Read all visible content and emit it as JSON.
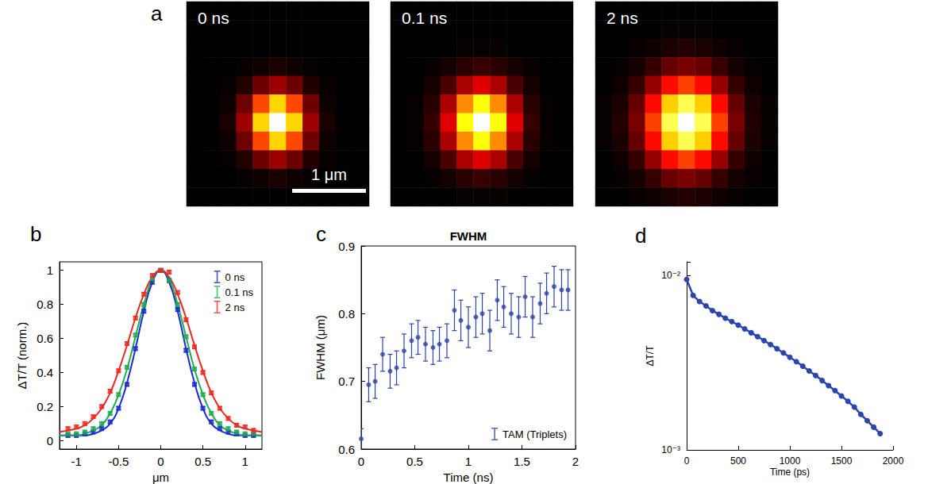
{
  "chart_data": [
    {
      "panel": "a",
      "type": "heatmap",
      "tick_labels": false,
      "zlim": [
        0,
        1
      ],
      "pixel_size": 0.225,
      "scale_bar": {
        "label": "1 μm",
        "length": 1
      },
      "images": [
        {
          "title": "0 ns",
          "cells": [
            [
              0,
              0,
              0,
              0,
              0,
              0,
              0,
              0,
              0,
              0,
              0
            ],
            [
              0,
              0,
              0,
              0,
              0,
              0,
              0,
              0,
              0,
              0,
              0
            ],
            [
              0,
              0,
              0,
              0,
              0,
              0,
              0,
              0,
              0,
              0,
              0
            ],
            [
              0,
              0,
              0,
              0.01,
              0.02,
              0.04,
              0.02,
              0.01,
              0,
              0,
              0
            ],
            [
              0,
              0,
              0.01,
              0.05,
              0.16,
              0.23,
              0.16,
              0.05,
              0.01,
              0,
              0
            ],
            [
              0,
              0,
              0.02,
              0.16,
              0.48,
              0.69,
              0.48,
              0.16,
              0.02,
              0,
              0
            ],
            [
              0,
              0,
              0.04,
              0.23,
              0.69,
              1,
              0.69,
              0.23,
              0.04,
              0,
              0
            ],
            [
              0,
              0,
              0.02,
              0.16,
              0.48,
              0.69,
              0.48,
              0.16,
              0.02,
              0,
              0
            ],
            [
              0,
              0,
              0.01,
              0.05,
              0.16,
              0.23,
              0.16,
              0.05,
              0.01,
              0,
              0
            ],
            [
              0,
              0,
              0,
              0.01,
              0.02,
              0.04,
              0.02,
              0.01,
              0,
              0,
              0
            ],
            [
              0,
              0,
              0,
              0,
              0,
              0,
              0,
              0,
              0,
              0,
              0
            ]
          ]
        },
        {
          "title": "0.1 ns",
          "cells": [
            [
              0,
              0,
              0,
              0,
              0,
              0,
              0,
              0,
              0,
              0,
              0
            ],
            [
              0,
              0,
              0,
              0,
              0,
              0,
              0,
              0,
              0,
              0,
              0
            ],
            [
              0,
              0,
              0,
              0,
              0.01,
              0.01,
              0.01,
              0,
              0,
              0,
              0
            ],
            [
              0,
              0,
              0.01,
              0.03,
              0.06,
              0.08,
              0.06,
              0.03,
              0.01,
              0,
              0
            ],
            [
              0,
              0,
              0.03,
              0.11,
              0.25,
              0.33,
              0.25,
              0.11,
              0.03,
              0,
              0
            ],
            [
              0,
              0.01,
              0.06,
              0.25,
              0.58,
              0.76,
              0.58,
              0.25,
              0.06,
              0.01,
              0
            ],
            [
              0,
              0.01,
              0.08,
              0.33,
              0.76,
              1,
              0.76,
              0.33,
              0.08,
              0.01,
              0
            ],
            [
              0,
              0.01,
              0.06,
              0.25,
              0.58,
              0.76,
              0.58,
              0.25,
              0.06,
              0.01,
              0
            ],
            [
              0,
              0,
              0.03,
              0.11,
              0.25,
              0.33,
              0.25,
              0.11,
              0.03,
              0,
              0
            ],
            [
              0,
              0,
              0.01,
              0.03,
              0.06,
              0.08,
              0.06,
              0.03,
              0.01,
              0,
              0
            ],
            [
              0,
              0,
              0,
              0,
              0.01,
              0.01,
              0.01,
              0,
              0,
              0,
              0
            ]
          ]
        },
        {
          "title": "2 ns",
          "cells": [
            [
              0,
              0,
              0,
              0,
              0,
              0,
              0,
              0,
              0,
              0,
              0
            ],
            [
              0,
              0,
              0,
              0,
              0.01,
              0.01,
              0.01,
              0,
              0,
              0,
              0
            ],
            [
              0,
              0,
              0.01,
              0.02,
              0.04,
              0.05,
              0.04,
              0.02,
              0.01,
              0,
              0
            ],
            [
              0,
              0.01,
              0.03,
              0.08,
              0.15,
              0.18,
              0.15,
              0.08,
              0.03,
              0.01,
              0
            ],
            [
              0,
              0.02,
              0.08,
              0.22,
              0.39,
              0.47,
              0.39,
              0.22,
              0.08,
              0.02,
              0
            ],
            [
              0.01,
              0.04,
              0.15,
              0.39,
              0.68,
              0.83,
              0.68,
              0.39,
              0.15,
              0.04,
              0.01
            ],
            [
              0.01,
              0.05,
              0.18,
              0.47,
              0.83,
              1,
              0.83,
              0.47,
              0.18,
              0.05,
              0.01
            ],
            [
              0.01,
              0.04,
              0.15,
              0.39,
              0.68,
              0.83,
              0.68,
              0.39,
              0.15,
              0.04,
              0.01
            ],
            [
              0,
              0.02,
              0.08,
              0.22,
              0.39,
              0.47,
              0.39,
              0.22,
              0.08,
              0.02,
              0
            ],
            [
              0,
              0.01,
              0.03,
              0.08,
              0.15,
              0.18,
              0.15,
              0.08,
              0.03,
              0.01,
              0
            ],
            [
              0,
              0,
              0.01,
              0.02,
              0.04,
              0.05,
              0.04,
              0.02,
              0.01,
              0,
              0
            ]
          ]
        }
      ]
    },
    {
      "panel": "b",
      "type": "scatter",
      "xlabel": "μm",
      "ylabel": "ΔT/T (norm.)",
      "xlim": [
        -1.2,
        1.2
      ],
      "xticks": [
        -1,
        -0.5,
        0,
        0.5,
        1
      ],
      "ylim": [
        -0.05,
        1.05
      ],
      "yticks": [
        0,
        0.2,
        0.4,
        0.6,
        0.8,
        1
      ],
      "legend": "upper right",
      "marker": "square",
      "series": [
        {
          "name": "0 ns",
          "color": "#1b2bd6",
          "x": [
            -1.1,
            -1,
            -0.9,
            -0.8,
            -0.7,
            -0.6,
            -0.5,
            -0.4,
            -0.3,
            -0.2,
            -0.1,
            0,
            0.1,
            0.2,
            0.3,
            0.4,
            0.5,
            0.6,
            0.7,
            0.8,
            0.9,
            1,
            1.1
          ],
          "values": [
            0.03,
            0.03,
            0.04,
            0.05,
            0.07,
            0.11,
            0.19,
            0.33,
            0.54,
            0.76,
            0.93,
            1,
            0.94,
            0.77,
            0.53,
            0.33,
            0.19,
            0.11,
            0.07,
            0.05,
            0.04,
            0.03,
            0.03
          ],
          "errors": [
            0.01,
            0.01,
            0.01,
            0.01,
            0.01,
            0.01,
            0.01,
            0.01,
            0.01,
            0.01,
            0.01,
            0.01,
            0.01,
            0.01,
            0.01,
            0.01,
            0.01,
            0.01,
            0.01,
            0.01,
            0.01,
            0.01,
            0.01
          ],
          "fit": {
            "x": [
              -1.2,
              -1.1,
              -1,
              -0.9,
              -0.8,
              -0.7,
              -0.6,
              -0.5,
              -0.4,
              -0.3,
              -0.2,
              -0.1,
              0,
              0.1,
              0.2,
              0.3,
              0.4,
              0.5,
              0.6,
              0.7,
              0.8,
              0.9,
              1,
              1.1,
              1.2
            ],
            "values": [
              0.03,
              0.03,
              0.03,
              0.03,
              0.04,
              0.06,
              0.1,
              0.19,
              0.34,
              0.54,
              0.76,
              0.93,
              1,
              0.93,
              0.76,
              0.54,
              0.34,
              0.19,
              0.1,
              0.06,
              0.04,
              0.03,
              0.03,
              0.03,
              0.03
            ]
          }
        },
        {
          "name": "0.1 ns",
          "color": "#1fae4b",
          "x": [
            -1.1,
            -1,
            -0.9,
            -0.8,
            -0.7,
            -0.6,
            -0.5,
            -0.4,
            -0.3,
            -0.2,
            -0.1,
            0,
            0.1,
            0.2,
            0.3,
            0.4,
            0.5,
            0.6,
            0.7,
            0.8,
            0.9,
            1,
            1.1
          ],
          "values": [
            0.04,
            0.04,
            0.05,
            0.07,
            0.1,
            0.16,
            0.27,
            0.43,
            0.62,
            0.8,
            0.95,
            1,
            0.94,
            0.8,
            0.61,
            0.42,
            0.27,
            0.16,
            0.1,
            0.07,
            0.05,
            0.04,
            0.04
          ],
          "errors": [
            0.01,
            0.01,
            0.01,
            0.01,
            0.01,
            0.01,
            0.01,
            0.01,
            0.01,
            0.01,
            0.01,
            0.01,
            0.01,
            0.01,
            0.01,
            0.01,
            0.01,
            0.01,
            0.01,
            0.01,
            0.01,
            0.01,
            0.01
          ],
          "fit": {
            "x": [
              -1.2,
              -1.1,
              -1,
              -0.9,
              -0.8,
              -0.7,
              -0.6,
              -0.5,
              -0.4,
              -0.3,
              -0.2,
              -0.1,
              0,
              0.1,
              0.2,
              0.3,
              0.4,
              0.5,
              0.6,
              0.7,
              0.8,
              0.9,
              1,
              1.1,
              1.2
            ],
            "values": [
              0.03,
              0.03,
              0.03,
              0.04,
              0.06,
              0.09,
              0.16,
              0.27,
              0.42,
              0.61,
              0.8,
              0.95,
              1,
              0.95,
              0.8,
              0.61,
              0.42,
              0.27,
              0.16,
              0.09,
              0.06,
              0.04,
              0.03,
              0.03,
              0.03
            ]
          }
        },
        {
          "name": "2 ns",
          "color": "#f0281e",
          "x": [
            -1.1,
            -1,
            -0.9,
            -0.8,
            -0.7,
            -0.6,
            -0.5,
            -0.4,
            -0.3,
            -0.2,
            -0.1,
            0,
            0.1,
            0.2,
            0.3,
            0.4,
            0.5,
            0.6,
            0.7,
            0.8,
            0.9,
            1,
            1.1
          ],
          "values": [
            0.07,
            0.08,
            0.1,
            0.14,
            0.2,
            0.29,
            0.41,
            0.57,
            0.72,
            0.86,
            0.97,
            1,
            0.99,
            0.87,
            0.71,
            0.55,
            0.4,
            0.28,
            0.19,
            0.13,
            0.09,
            0.08,
            0.06
          ],
          "errors": [
            0.01,
            0.01,
            0.01,
            0.01,
            0.01,
            0.01,
            0.01,
            0.01,
            0.01,
            0.01,
            0.01,
            0.01,
            0.01,
            0.01,
            0.01,
            0.01,
            0.01,
            0.01,
            0.01,
            0.01,
            0.01,
            0.01,
            0.01
          ],
          "fit": {
            "x": [
              -1.2,
              -1.1,
              -1,
              -0.9,
              -0.8,
              -0.7,
              -0.6,
              -0.5,
              -0.4,
              -0.3,
              -0.2,
              -0.1,
              0,
              0.1,
              0.2,
              0.3,
              0.4,
              0.5,
              0.6,
              0.7,
              0.8,
              0.9,
              1,
              1.1,
              1.2
            ],
            "values": [
              0.05,
              0.06,
              0.07,
              0.09,
              0.13,
              0.19,
              0.28,
              0.41,
              0.56,
              0.72,
              0.86,
              0.96,
              1,
              0.96,
              0.86,
              0.72,
              0.56,
              0.41,
              0.28,
              0.19,
              0.13,
              0.09,
              0.07,
              0.06,
              0.05
            ]
          }
        }
      ]
    },
    {
      "panel": "c",
      "type": "scatter",
      "title": "FWHM",
      "xlabel": "Time (ns)",
      "ylabel": "FWHM (μm)",
      "xlim": [
        0,
        2
      ],
      "xticks": [
        0,
        0.5,
        1,
        1.5,
        2
      ],
      "ylim": [
        0.6,
        0.9
      ],
      "yticks": [
        0.6,
        0.7,
        0.8,
        0.9
      ],
      "legend": "lower right",
      "marker": "circle",
      "series": [
        {
          "name": "TAM (Triplets)",
          "color": "#2a44a8",
          "x": [
            0,
            0.07,
            0.13,
            0.2,
            0.27,
            0.33,
            0.4,
            0.47,
            0.53,
            0.6,
            0.67,
            0.73,
            0.8,
            0.87,
            0.93,
            1,
            1.07,
            1.13,
            1.2,
            1.27,
            1.33,
            1.4,
            1.47,
            1.53,
            1.6,
            1.67,
            1.73,
            1.8,
            1.87,
            1.93
          ],
          "values": [
            0.615,
            0.695,
            0.7,
            0.74,
            0.715,
            0.72,
            0.745,
            0.76,
            0.765,
            0.755,
            0.75,
            0.755,
            0.76,
            0.805,
            0.79,
            0.78,
            0.795,
            0.8,
            0.775,
            0.82,
            0.81,
            0.8,
            0.795,
            0.825,
            0.795,
            0.815,
            0.83,
            0.84,
            0.835,
            0.835
          ],
          "errors": [
            0.015,
            0.025,
            0.025,
            0.025,
            0.025,
            0.025,
            0.025,
            0.025,
            0.025,
            0.025,
            0.025,
            0.025,
            0.025,
            0.03,
            0.03,
            0.03,
            0.03,
            0.03,
            0.03,
            0.03,
            0.03,
            0.03,
            0.03,
            0.03,
            0.03,
            0.03,
            0.03,
            0.03,
            0.03,
            0.03
          ]
        }
      ]
    },
    {
      "panel": "d",
      "type": "line",
      "xlabel": "Time (ps)",
      "ylabel": "ΔT/T",
      "log": "y",
      "xlim": [
        0,
        2000
      ],
      "xticks": [
        0,
        500,
        1000,
        1500,
        2000
      ],
      "ylim": [
        0.001,
        0.012
      ],
      "yticks": [
        {
          "value": 0.001,
          "label": "10⁻³"
        },
        {
          "value": 0.01,
          "label": "10⁻²"
        }
      ],
      "marker": "circle",
      "color": "#2a44b0",
      "x": [
        0,
        62.5,
        125,
        187.5,
        250,
        312.5,
        375,
        437.5,
        500,
        562.5,
        625,
        687.5,
        750,
        812.5,
        875,
        937.5,
        1000,
        1062.5,
        1125,
        1187.5,
        1250,
        1312.5,
        1375,
        1437.5,
        1500,
        1562.5,
        1625,
        1687.5,
        1750,
        1812.5,
        1875
      ],
      "values": [
        0.0095,
        0.0077,
        0.0071,
        0.0067,
        0.0063,
        0.006,
        0.0057,
        0.00545,
        0.0052,
        0.00495,
        0.0047,
        0.00447,
        0.00424,
        0.00402,
        0.00381,
        0.0036,
        0.0034,
        0.00321,
        0.00302,
        0.00284,
        0.00267,
        0.0025,
        0.00234,
        0.00219,
        0.00204,
        0.0019,
        0.00176,
        0.0016,
        0.00147,
        0.00135,
        0.00124
      ]
    }
  ]
}
